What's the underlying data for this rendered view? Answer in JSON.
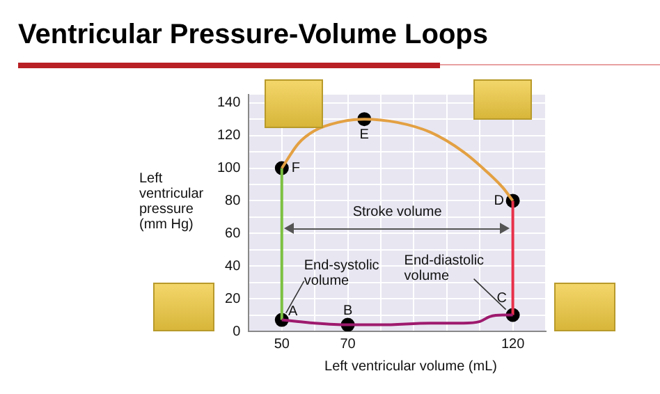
{
  "chart_data": {
    "type": "line",
    "title": "Ventricular Pressure-Volume Loops",
    "xlabel": "Left ventricular volume (mL)",
    "ylabel": "Left ventricular pressure (mm Hg)",
    "xlim": [
      40,
      130
    ],
    "ylim": [
      0,
      145
    ],
    "xticks": [
      {
        "value": 40,
        "label": null
      },
      50,
      {
        "value": 60,
        "label": null
      },
      70,
      {
        "value": 80,
        "label": null
      },
      {
        "value": 90,
        "label": null
      },
      {
        "value": 100,
        "label": null
      },
      {
        "value": 110,
        "label": null
      },
      120,
      {
        "value": 130,
        "label": null
      }
    ],
    "yticks": [
      0,
      {
        "value": 10,
        "label": null
      },
      20,
      {
        "value": 30,
        "label": null
      },
      40,
      {
        "value": 50,
        "label": null
      },
      60,
      {
        "value": 70,
        "label": null
      },
      80,
      {
        "value": 90,
        "label": null
      },
      100,
      {
        "value": 110,
        "label": null
      },
      120,
      {
        "value": 130,
        "label": null
      },
      140
    ],
    "grid": true,
    "legend": false,
    "marker": "none",
    "line_style": "solid",
    "series": [
      {
        "type": "line",
        "color": "#9e1a6e",
        "x": [
          50,
          55,
          60,
          70,
          80,
          95,
          105,
          110,
          113,
          117,
          120
        ],
        "values": [
          7,
          6,
          5,
          4,
          4,
          5,
          5,
          6,
          9,
          10,
          10
        ]
      },
      {
        "type": "line",
        "color": "#e8314a",
        "x": [
          120,
          120
        ],
        "values": [
          10,
          80
        ]
      },
      {
        "type": "line",
        "color": "#e3a042",
        "x": [
          120,
          117,
          112,
          105,
          95,
          85,
          75,
          67,
          60,
          55,
          50
        ],
        "values": [
          80,
          88,
          98,
          110,
          122,
          128,
          130,
          128,
          123,
          115,
          100
        ]
      },
      {
        "type": "line",
        "color": "#7cc142",
        "x": [
          50,
          50
        ],
        "values": [
          100,
          7
        ]
      },
      {
        "type": "scatter",
        "color": "#000000",
        "marker": "circle",
        "x": [
          50,
          70,
          120,
          120,
          75,
          50
        ],
        "values": [
          7,
          4,
          10,
          80,
          130,
          100
        ]
      }
    ],
    "annotations": [
      {
        "text": "A",
        "x": 50,
        "y": 7
      },
      {
        "text": "B",
        "x": 70,
        "y": 4
      },
      {
        "text": "C",
        "x": 120,
        "y": 10
      },
      {
        "text": "D",
        "x": 120,
        "y": 80
      },
      {
        "text": "E",
        "x": 75,
        "y": 130
      },
      {
        "text": "F",
        "x": 50,
        "y": 100
      },
      "Stroke volume",
      {
        "text": "End-systolic volume",
        "x": 50,
        "y": 7
      },
      {
        "text": "End-diastolic volume",
        "x": 120,
        "y": 10
      }
    ]
  }
}
